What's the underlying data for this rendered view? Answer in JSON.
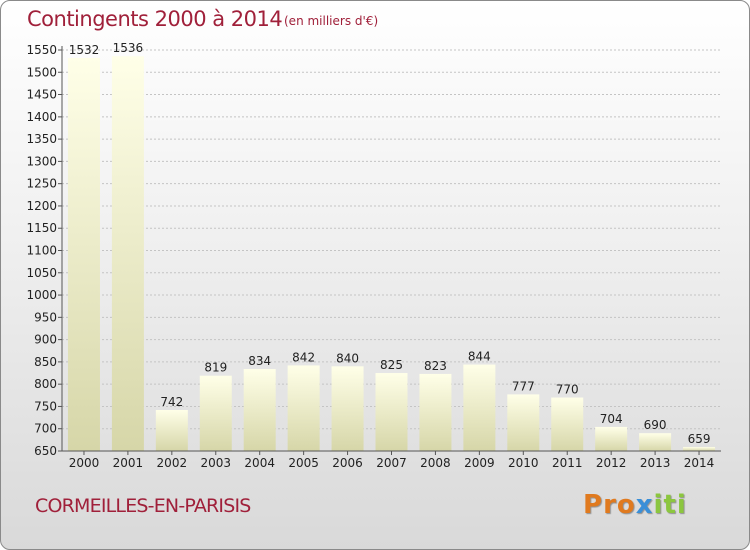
{
  "chart_data": {
    "type": "bar",
    "title": "Contingents 2000 à 2014",
    "subtitle": "(en milliers d'€)",
    "categories": [
      "2000",
      "2001",
      "2002",
      "2003",
      "2004",
      "2005",
      "2006",
      "2007",
      "2008",
      "2009",
      "2010",
      "2011",
      "2012",
      "2013",
      "2014"
    ],
    "values": [
      1532,
      1536,
      742,
      819,
      834,
      842,
      840,
      825,
      823,
      844,
      777,
      770,
      704,
      690,
      659
    ],
    "value_labels": [
      "1532",
      "1536",
      "742",
      "819",
      "834",
      "842",
      "840",
      "825",
      "823",
      "844",
      "777",
      "770",
      "704",
      "690",
      "659"
    ],
    "ylim": [
      650,
      1550
    ],
    "yticks": [
      "650",
      "700",
      "750",
      "800",
      "850",
      "900",
      "950",
      "1000",
      "1050",
      "1100",
      "1150",
      "1200",
      "1250",
      "1300",
      "1350",
      "1400",
      "1450",
      "1500",
      "1550"
    ],
    "grid": true,
    "xlabel": "",
    "ylabel": ""
  },
  "footer": {
    "place": "CORMEILLES-EN-PARISIS",
    "logo_letters": [
      "P",
      "r",
      "o",
      "x",
      "i",
      "t",
      "i"
    ]
  },
  "colors": {
    "title": "#a0203a",
    "bar_top": "#ffffe8",
    "bar_bottom": "#d6d6a8",
    "logo": [
      "#e07a1f",
      "#e07a1f",
      "#e07a1f",
      "#3a8fd8",
      "#8cc63f",
      "#8cc63f",
      "#8cc63f"
    ]
  }
}
